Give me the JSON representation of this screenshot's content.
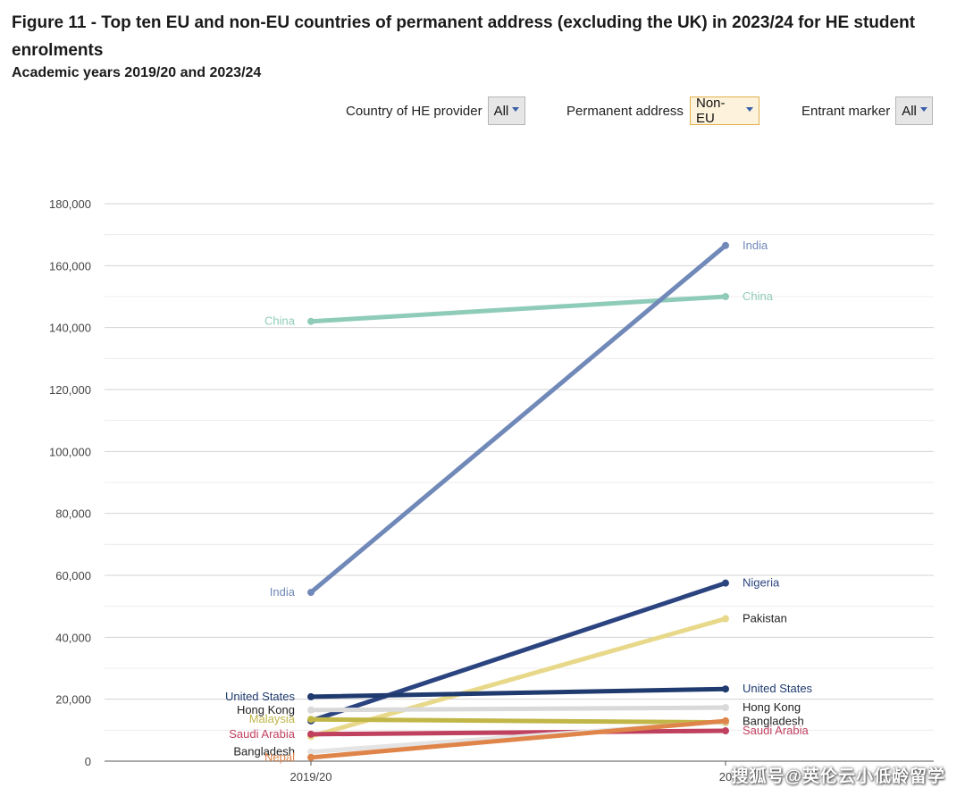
{
  "title": "Figure 11 - Top ten EU and non-EU countries of permanent address (excluding the UK) in 2023/24 for HE student enrolments",
  "subtitle": "Academic years 2019/20 and 2023/24",
  "filters": [
    {
      "label": "Country of HE provider",
      "value": "All",
      "active": false
    },
    {
      "label": "Permanent address",
      "value": "Non-EU",
      "active": true
    },
    {
      "label": "Entrant marker",
      "value": "All",
      "active": false
    }
  ],
  "watermark": "搜狐号@英伦云小低龄留学",
  "chart_data": {
    "type": "line",
    "title": "",
    "xlabel": "",
    "ylabel": "",
    "categories": [
      "2019/20",
      "2023/24"
    ],
    "visible_category_labels": [
      "2019/20",
      "20"
    ],
    "ylim": [
      0,
      180000
    ],
    "yticks": [
      "0",
      "20,000",
      "40,000",
      "60,000",
      "80,000",
      "100,000",
      "120,000",
      "140,000",
      "160,000",
      "180,000"
    ],
    "ytick_values": [
      0,
      20000,
      40000,
      60000,
      80000,
      100000,
      120000,
      140000,
      160000,
      180000
    ],
    "grid": true,
    "series": [
      {
        "name": "China",
        "values": [
          142000,
          150000
        ],
        "color": "#8fcbb9",
        "left_label": "China",
        "right_label": "China",
        "left_label_color": "#8fcbb9",
        "right_label_color": "#8fcbb9"
      },
      {
        "name": "India",
        "values": [
          54500,
          166500
        ],
        "color": "#7089b8",
        "left_label": "India",
        "right_label": "India",
        "left_label_color": "#7089b8",
        "right_label_color": "#7089b8"
      },
      {
        "name": "Nigeria",
        "values": [
          13000,
          57500
        ],
        "color": "#2b4480",
        "left_label": "",
        "right_label": "Nigeria",
        "left_label_color": "#2b4480",
        "right_label_color": "#2b4480"
      },
      {
        "name": "Pakistan",
        "values": [
          8000,
          46000
        ],
        "color": "#e8d88a",
        "left_label": "",
        "right_label": "Pakistan",
        "left_label_color": "#222222",
        "right_label_color": "#222222"
      },
      {
        "name": "United States",
        "values": [
          20800,
          23300
        ],
        "color": "#1f3a6e",
        "left_label": "United States",
        "right_label": "United States",
        "left_label_color": "#1f3a6e",
        "right_label_color": "#1f3a6e"
      },
      {
        "name": "Hong Kong",
        "values": [
          16500,
          17300
        ],
        "color": "#d9d9d9",
        "left_label": "Hong Kong",
        "right_label": "Hong Kong",
        "left_label_color": "#222222",
        "right_label_color": "#222222"
      },
      {
        "name": "Malaysia",
        "values": [
          13500,
          12500
        ],
        "color": "#c1b648",
        "left_label": "Malaysia",
        "right_label": "",
        "left_label_color": "#c1b648",
        "right_label_color": "#c1b648"
      },
      {
        "name": "Saudi Arabia",
        "values": [
          8700,
          9800
        ],
        "color": "#c0405f",
        "left_label": "Saudi Arabia",
        "right_label": "Saudi Arabia",
        "left_label_color": "#c0405f",
        "right_label_color": "#c0405f"
      },
      {
        "name": "Bangladesh",
        "values": [
          3000,
          12800
        ],
        "color": "#e4e4e4",
        "left_label": "Bangladesh",
        "right_label": "Bangladesh",
        "left_label_color": "#222222",
        "right_label_color": "#222222"
      },
      {
        "name": "Nepal",
        "values": [
          1200,
          13000
        ],
        "color": "#e0854a",
        "left_label": "Nepal",
        "right_label": "",
        "left_label_color": "#e0854a",
        "right_label_color": "#e0854a"
      }
    ]
  }
}
